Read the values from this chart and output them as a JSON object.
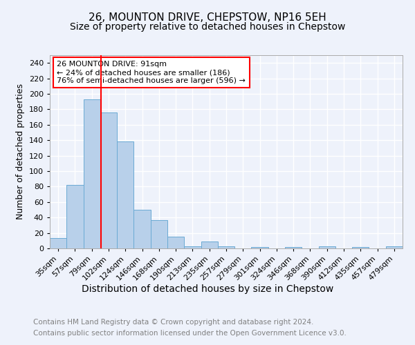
{
  "title1": "26, MOUNTON DRIVE, CHEPSTOW, NP16 5EH",
  "title2": "Size of property relative to detached houses in Chepstow",
  "xlabel": "Distribution of detached houses by size in Chepstow",
  "ylabel": "Number of detached properties",
  "bar_values": [
    13,
    82,
    193,
    176,
    138,
    50,
    37,
    15,
    3,
    9,
    3,
    0,
    2,
    0,
    2,
    0,
    3,
    0,
    2,
    0,
    3
  ],
  "bar_labels": [
    "35sqm",
    "57sqm",
    "79sqm",
    "102sqm",
    "124sqm",
    "146sqm",
    "168sqm",
    "190sqm",
    "213sqm",
    "235sqm",
    "257sqm",
    "279sqm",
    "301sqm",
    "324sqm",
    "346sqm",
    "368sqm",
    "390sqm",
    "412sqm",
    "435sqm",
    "457sqm",
    "479sqm"
  ],
  "bar_color": "#b8d0ea",
  "bar_edge_color": "#6aaad4",
  "bar_width": 1.0,
  "red_line_x": 2.55,
  "annotation_text": "26 MOUNTON DRIVE: 91sqm\n← 24% of detached houses are smaller (186)\n76% of semi-detached houses are larger (596) →",
  "annotation_box_color": "white",
  "annotation_box_edge": "red",
  "ylim": [
    0,
    250
  ],
  "yticks": [
    0,
    20,
    40,
    60,
    80,
    100,
    120,
    140,
    160,
    180,
    200,
    220,
    240
  ],
  "footer1": "Contains HM Land Registry data © Crown copyright and database right 2024.",
  "footer2": "Contains public sector information licensed under the Open Government Licence v3.0.",
  "background_color": "#eef2fb",
  "grid_color": "white",
  "title1_fontsize": 11,
  "title2_fontsize": 10,
  "xlabel_fontsize": 10,
  "ylabel_fontsize": 9,
  "footer_fontsize": 7.5,
  "tick_fontsize": 8,
  "annot_fontsize": 8
}
